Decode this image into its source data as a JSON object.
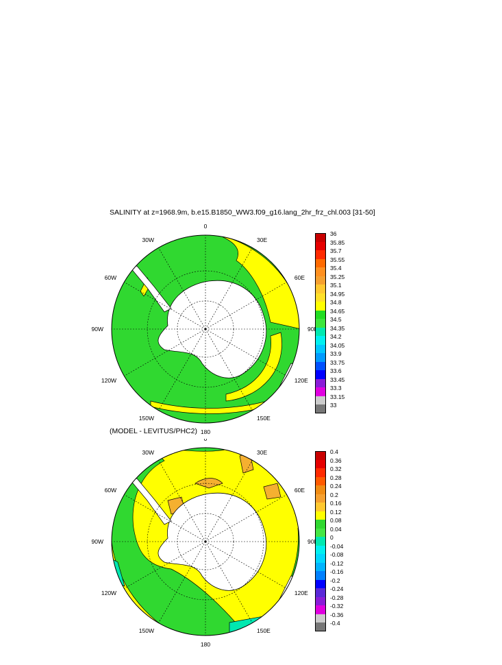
{
  "panel1": {
    "title": "SALINITY at z=1968.9m, b.e15.B1850_WW3.f09_g16.lang_2hr_frz_chl.003 [31-50]",
    "colorbar": {
      "labels": [
        "36",
        "35.85",
        "35.7",
        "35.55",
        "35.4",
        "35.25",
        "35.1",
        "34.95",
        "34.8",
        "34.65",
        "34.5",
        "34.35",
        "34.2",
        "34.05",
        "33.9",
        "33.75",
        "33.6",
        "33.45",
        "33.3",
        "33.15",
        "33"
      ],
      "colors": [
        "#c80000",
        "#e60000",
        "#ff2a00",
        "#ff6a00",
        "#ff9020",
        "#f5a030",
        "#ffc830",
        "#ffe028",
        "#ffff00",
        "#22dd22",
        "#3ce63c",
        "#00e8b0",
        "#00f0f0",
        "#00c8ff",
        "#009bff",
        "#0050ff",
        "#0000ff",
        "#8a1cd8",
        "#e000e0",
        "#cccccc",
        "#777777"
      ]
    }
  },
  "panel2": {
    "title": "(MODEL - LEVITUS/PHC2)",
    "colorbar": {
      "labels": [
        "0.4",
        "0.36",
        "0.32",
        "0.28",
        "0.24",
        "0.2",
        "0.16",
        "0.12",
        "0.08",
        "0.04",
        "0",
        "-0.04",
        "-0.08",
        "-0.12",
        "-0.16",
        "-0.2",
        "-0.24",
        "-0.28",
        "-0.32",
        "-0.36",
        "-0.4"
      ],
      "colors": [
        "#c80000",
        "#e60000",
        "#ff2a00",
        "#ff5a00",
        "#f08c14",
        "#f5a030",
        "#ffc830",
        "#ffff00",
        "#30d830",
        "#44e644",
        "#00e8b0",
        "#00f0f0",
        "#00d8ff",
        "#00b4ff",
        "#0080ff",
        "#0000ff",
        "#5a28d8",
        "#8a1cd8",
        "#e000e0",
        "#cccccc",
        "#777777"
      ]
    }
  },
  "map_labels": {
    "lon_0": "0",
    "lon_30e": "30E",
    "lon_60e": "60E",
    "lon_90e": "90E",
    "lon_120e": "120E",
    "lon_150e": "150E",
    "lon_180": "180",
    "lon_150w": "150W",
    "lon_120w": "120W",
    "lon_90w": "90W",
    "lon_60w": "60W",
    "lon_30w": "30W"
  },
  "colors": {
    "ocean_green": "#30d830",
    "ocean_yellow": "#ffff00",
    "ocean_orange": "#f5b030",
    "ocean_cyan": "#00e8b0",
    "land": "#ffffff"
  }
}
